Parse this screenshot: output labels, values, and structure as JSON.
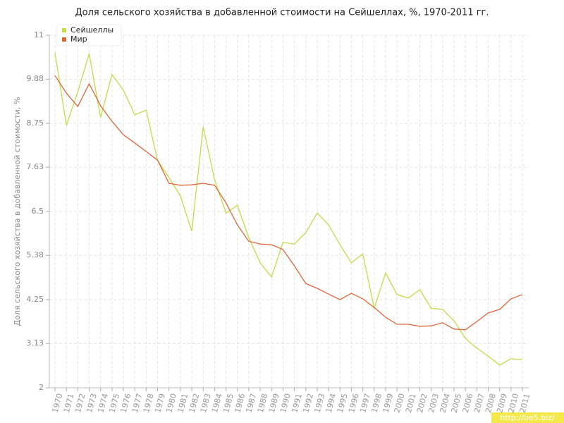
{
  "chart_data": {
    "type": "line",
    "title": "Доля сельского хозяйства в добавленной стоимости на Сейшеллах, %, 1970-2011 гг.",
    "y_label": "Доля сельского хозяйства в добавленной стоимости, %",
    "watermark": "http://be5.biz/",
    "categories": [
      "1970",
      "1971",
      "1972",
      "1973",
      "1974",
      "1975",
      "1976",
      "1977",
      "1978",
      "1979",
      "1980",
      "1981",
      "1982",
      "1983",
      "1984",
      "1985",
      "1986",
      "1987",
      "1988",
      "1989",
      "1990",
      "1991",
      "1992",
      "1993",
      "1994",
      "1995",
      "1996",
      "1997",
      "1998",
      "1999",
      "2000",
      "2001",
      "2002",
      "2003",
      "2004",
      "2005",
      "2006",
      "2007",
      "2008",
      "2009",
      "2010",
      "2011"
    ],
    "series": [
      {
        "name": "Сейшеллы",
        "color": "#c2dc4a",
        "values": [
          10.55,
          8.7,
          9.55,
          10.53,
          8.9,
          10.0,
          9.6,
          8.97,
          9.09,
          7.8,
          7.37,
          6.9,
          6.0,
          8.66,
          7.31,
          6.46,
          6.66,
          5.83,
          5.19,
          4.83,
          5.71,
          5.67,
          5.96,
          6.46,
          6.16,
          5.65,
          5.19,
          5.42,
          4.03,
          4.93,
          4.38,
          4.29,
          4.5,
          4.03,
          4.0,
          3.71,
          3.26,
          3.01,
          2.81,
          2.58,
          2.74,
          2.72
        ]
      },
      {
        "name": "Мир",
        "color": "#e0663a",
        "values": [
          9.97,
          9.52,
          9.18,
          9.76,
          9.2,
          8.8,
          8.46,
          8.25,
          8.03,
          7.81,
          7.22,
          7.17,
          7.18,
          7.22,
          7.17,
          6.72,
          6.16,
          5.74,
          5.67,
          5.65,
          5.53,
          5.11,
          4.66,
          4.54,
          4.39,
          4.25,
          4.41,
          4.27,
          4.05,
          3.8,
          3.62,
          3.62,
          3.57,
          3.58,
          3.66,
          3.5,
          3.48,
          3.69,
          3.91,
          4.0,
          4.27,
          4.38
        ]
      }
    ],
    "ylim": [
      2,
      11
    ],
    "yticks": [
      2,
      3.13,
      4.25,
      5.38,
      6.5,
      7.63,
      8.75,
      9.88,
      11
    ],
    "grid": true,
    "legend": "top-left"
  }
}
